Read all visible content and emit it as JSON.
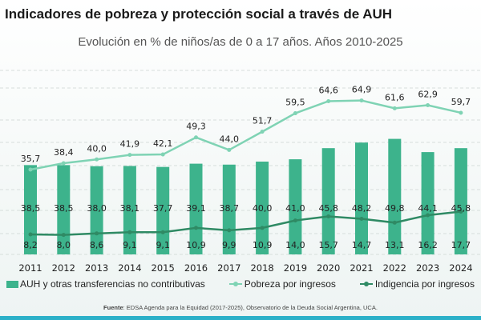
{
  "title": "Indicadores de pobreza y protección social a través de AUH",
  "subtitle": "Evolución en % de niños/as de 0 a 17 años. Años 2010-2025",
  "chart_data": {
    "type": "bar+line",
    "categories": [
      "2011",
      "2012",
      "2013",
      "2014",
      "2015",
      "2016",
      "2017",
      "2018",
      "2019",
      "2020",
      "2021",
      "2022",
      "2023",
      "2024"
    ],
    "series": [
      {
        "name": "AUH y otras transferencias no contributivas",
        "type": "bar",
        "color": "#3db38c",
        "values": [
          38.5,
          38.5,
          38.0,
          38.1,
          37.7,
          39.1,
          38.7,
          40.0,
          41.0,
          45.8,
          48.2,
          49.8,
          44.1,
          45.8
        ]
      },
      {
        "name": "Pobreza por ingresos",
        "type": "line",
        "color": "#7fd3b4",
        "values": [
          35.7,
          38.4,
          40.0,
          41.9,
          42.1,
          49.3,
          44.0,
          51.7,
          59.5,
          64.6,
          64.9,
          61.6,
          62.9,
          59.7
        ]
      },
      {
        "name": "Indigencia por ingresos",
        "type": "line",
        "color": "#2f8a64",
        "values": [
          8.2,
          8.0,
          8.6,
          9.1,
          9.1,
          10.9,
          9.9,
          10.9,
          14.0,
          15.7,
          14.7,
          13.1,
          16.2,
          17.7
        ]
      }
    ],
    "grid": true,
    "legend": "bottom"
  },
  "footer": {
    "label": "Fuente",
    "text": ": EDSA Agenda para la Equidad (2017-2025), Observatorio de la Deuda Social Argentina, UCA."
  }
}
